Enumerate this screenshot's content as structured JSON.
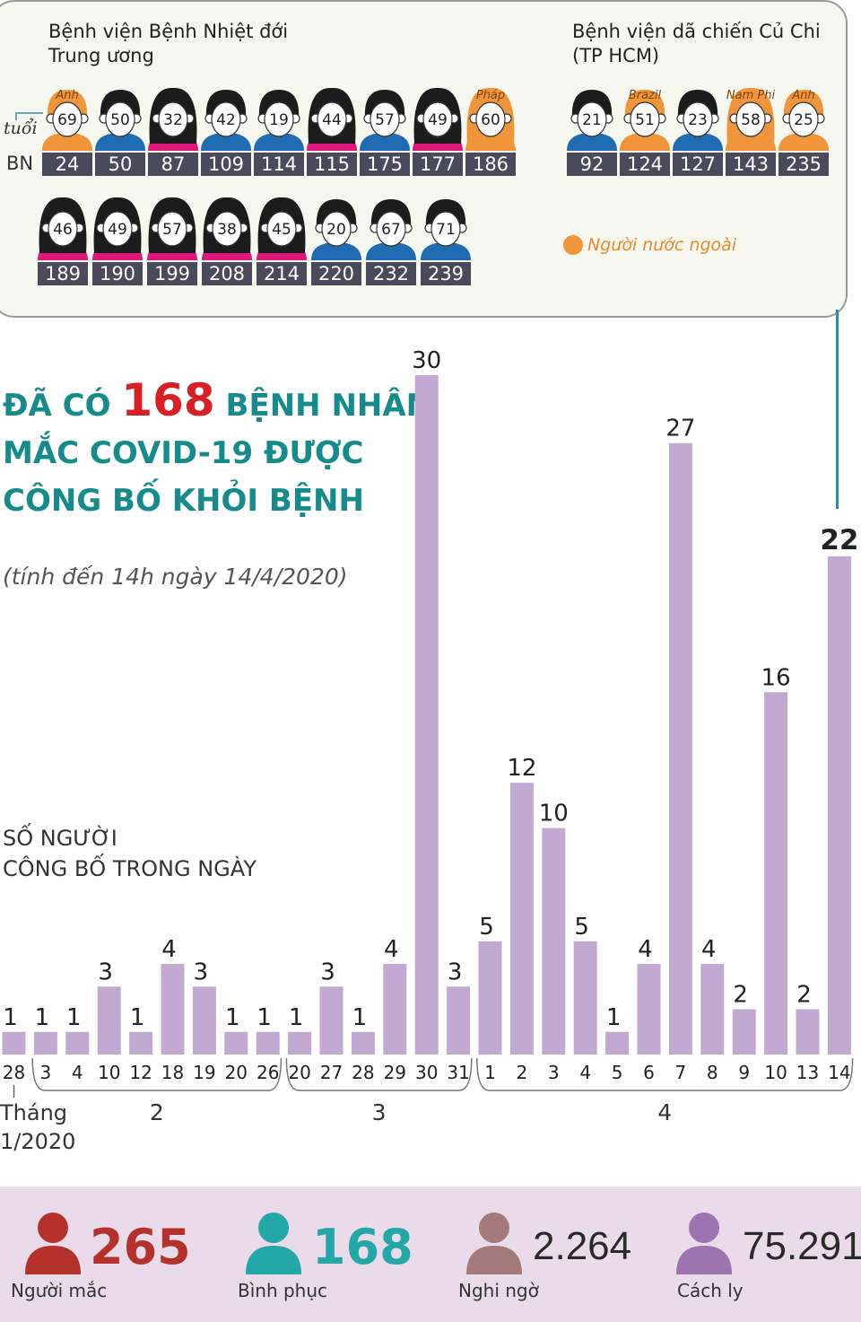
{
  "panel": {
    "hospital_1": {
      "title_line1": "Bệnh viện Bệnh Nhiệt đới",
      "title_line2": "Trung ương"
    },
    "hospital_2": {
      "title_line1": "Bệnh viện dã chiến Củ Chi",
      "title_line2": "(TP HCM)"
    },
    "age_label": "tuổi",
    "bn_label": "BN",
    "legend_label": "Người nước ngoài",
    "colors": {
      "male": "#1f6cb3",
      "female": "#e0177a",
      "foreign": "#f0953a",
      "hair": "#1c1c1c",
      "bn_box": "#4a4a5a"
    },
    "rows": [
      [
        {
          "age": "69",
          "bn": "24",
          "gender": "male",
          "foreign": true,
          "country": "Anh"
        },
        {
          "age": "50",
          "bn": "50",
          "gender": "male",
          "foreign": false,
          "country": ""
        },
        {
          "age": "32",
          "bn": "87",
          "gender": "female",
          "foreign": false,
          "country": ""
        },
        {
          "age": "42",
          "bn": "109",
          "gender": "male",
          "foreign": false,
          "country": ""
        },
        {
          "age": "19",
          "bn": "114",
          "gender": "male",
          "foreign": false,
          "country": ""
        },
        {
          "age": "44",
          "bn": "115",
          "gender": "female",
          "foreign": false,
          "country": ""
        },
        {
          "age": "57",
          "bn": "175",
          "gender": "male",
          "foreign": false,
          "country": ""
        },
        {
          "age": "49",
          "bn": "177",
          "gender": "female",
          "foreign": false,
          "country": ""
        },
        {
          "age": "60",
          "bn": "186",
          "gender": "female",
          "foreign": true,
          "country": "Pháp"
        }
      ],
      [
        {
          "age": "46",
          "bn": "189",
          "gender": "female",
          "foreign": false,
          "country": ""
        },
        {
          "age": "49",
          "bn": "190",
          "gender": "female",
          "foreign": false,
          "country": ""
        },
        {
          "age": "57",
          "bn": "199",
          "gender": "female",
          "foreign": false,
          "country": ""
        },
        {
          "age": "38",
          "bn": "208",
          "gender": "female",
          "foreign": false,
          "country": ""
        },
        {
          "age": "45",
          "bn": "214",
          "gender": "female",
          "foreign": false,
          "country": ""
        },
        {
          "age": "20",
          "bn": "220",
          "gender": "male",
          "foreign": false,
          "country": ""
        },
        {
          "age": "67",
          "bn": "232",
          "gender": "male",
          "foreign": false,
          "country": ""
        },
        {
          "age": "71",
          "bn": "239",
          "gender": "male",
          "foreign": false,
          "country": ""
        }
      ],
      [
        {
          "age": "21",
          "bn": "92",
          "gender": "male",
          "foreign": false,
          "country": ""
        },
        {
          "age": "51",
          "bn": "124",
          "gender": "male",
          "foreign": true,
          "country": "Brazil"
        },
        {
          "age": "23",
          "bn": "127",
          "gender": "male",
          "foreign": false,
          "country": ""
        },
        {
          "age": "58",
          "bn": "143",
          "gender": "female",
          "foreign": true,
          "country": "Nam Phi"
        },
        {
          "age": "25",
          "bn": "235",
          "gender": "male",
          "foreign": true,
          "country": "Anh"
        }
      ]
    ]
  },
  "headline": {
    "prefix": "ĐÃ CÓ ",
    "number": "168",
    "suffix": " BỆNH NHÂN",
    "line2": "MẮC COVID-19 ĐƯỢC",
    "line3": "CÔNG BỐ KHỎI BỆNH"
  },
  "subtitle": "(tính đến 14h ngày 14/4/2020)",
  "ylabel": {
    "line1": "SỐ NGƯỜI",
    "line2": "CÔNG BỐ TRONG NGÀY"
  },
  "month_note": {
    "line1": "Tháng",
    "line2": "1/2020"
  },
  "chart_data": {
    "type": "bar",
    "categories": [
      "28",
      "3",
      "4",
      "10",
      "12",
      "18",
      "19",
      "20",
      "26",
      "20",
      "27",
      "28",
      "29",
      "30",
      "31",
      "1",
      "2",
      "3",
      "4",
      "5",
      "6",
      "7",
      "8",
      "9",
      "10",
      "13",
      "14"
    ],
    "values": [
      1,
      1,
      1,
      3,
      1,
      4,
      3,
      1,
      1,
      1,
      3,
      1,
      4,
      30,
      3,
      5,
      12,
      10,
      5,
      1,
      4,
      27,
      4,
      2,
      16,
      2,
      22
    ],
    "month_groups": [
      {
        "label": "2",
        "start": 1,
        "end": 8
      },
      {
        "label": "3",
        "start": 9,
        "end": 14
      },
      {
        "label": "4",
        "start": 15,
        "end": 26
      }
    ],
    "highlight_last": true,
    "ylim": [
      0,
      30
    ],
    "bar_color": "#c1a9d2"
  },
  "stats": [
    {
      "value": "265",
      "label": "Người mắc",
      "color": "#b5322c",
      "icon": "person-icon"
    },
    {
      "value": "168",
      "label": "Bình phục",
      "color": "#23a7a7",
      "icon": "person-icon"
    },
    {
      "value": "2.264",
      "label": "Nghi ngờ",
      "color": "#a3797a",
      "icon": "person-icon"
    },
    {
      "value": "75.291",
      "label": "Cách ly",
      "color": "#9d74b0",
      "icon": "person-icon"
    }
  ]
}
